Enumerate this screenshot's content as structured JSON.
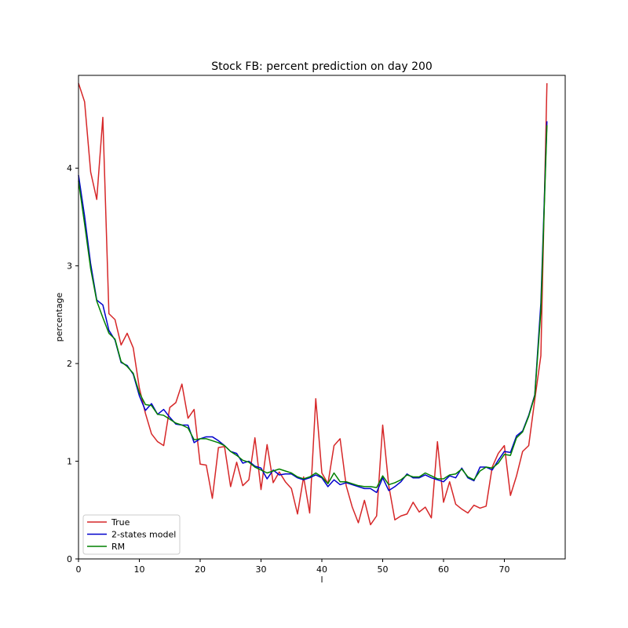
{
  "chart_data": {
    "type": "line",
    "title": "Stock FB: percent prediction on day 200",
    "xlabel": "l",
    "ylabel": "percentage",
    "xlim": [
      0,
      80
    ],
    "ylim": [
      0,
      4.95
    ],
    "xticks": [
      0,
      10,
      20,
      30,
      40,
      50,
      60,
      70
    ],
    "yticks": [
      0,
      1,
      2,
      3,
      4
    ],
    "grid": false,
    "legend_position": "lower-left",
    "series": [
      {
        "name": "True",
        "color": "#d62728",
        "values": [
          4.87,
          4.68,
          3.96,
          3.68,
          4.52,
          2.51,
          2.45,
          2.19,
          2.31,
          2.16,
          1.75,
          1.49,
          1.28,
          1.2,
          1.16,
          1.55,
          1.6,
          1.79,
          1.44,
          1.53,
          0.97,
          0.96,
          0.62,
          1.14,
          1.15,
          0.74,
          0.99,
          0.75,
          0.81,
          1.24,
          0.71,
          1.17,
          0.78,
          0.89,
          0.79,
          0.72,
          0.46,
          0.84,
          0.47,
          1.64,
          0.88,
          0.77,
          1.16,
          1.23,
          0.75,
          0.53,
          0.37,
          0.6,
          0.35,
          0.44,
          1.37,
          0.75,
          0.4,
          0.44,
          0.46,
          0.58,
          0.48,
          0.53,
          0.42,
          1.2,
          0.58,
          0.79,
          0.56,
          0.51,
          0.47,
          0.55,
          0.52,
          0.54,
          0.94,
          1.08,
          1.16,
          0.65,
          0.85,
          1.1,
          1.16,
          1.63,
          2.08,
          4.87
        ]
      },
      {
        "name": "2-states model",
        "color": "#0000cc",
        "values": [
          3.93,
          3.51,
          3.02,
          2.65,
          2.6,
          2.34,
          2.24,
          2.01,
          1.98,
          1.89,
          1.67,
          1.52,
          1.59,
          1.48,
          1.53,
          1.45,
          1.38,
          1.37,
          1.37,
          1.19,
          1.23,
          1.25,
          1.25,
          1.21,
          1.16,
          1.1,
          1.08,
          0.98,
          1.0,
          0.95,
          0.93,
          0.82,
          0.91,
          0.86,
          0.87,
          0.87,
          0.83,
          0.81,
          0.83,
          0.86,
          0.83,
          0.74,
          0.81,
          0.76,
          0.78,
          0.76,
          0.74,
          0.72,
          0.72,
          0.68,
          0.83,
          0.7,
          0.74,
          0.79,
          0.87,
          0.83,
          0.83,
          0.86,
          0.83,
          0.81,
          0.79,
          0.85,
          0.83,
          0.93,
          0.83,
          0.8,
          0.94,
          0.94,
          0.91,
          1.01,
          1.1,
          1.09,
          1.26,
          1.31,
          1.47,
          1.68,
          2.62,
          4.48
        ]
      },
      {
        "name": "RM",
        "color": "#008000",
        "values": [
          3.87,
          3.43,
          2.97,
          2.64,
          2.47,
          2.31,
          2.25,
          2.02,
          1.97,
          1.9,
          1.7,
          1.58,
          1.57,
          1.48,
          1.47,
          1.43,
          1.39,
          1.37,
          1.34,
          1.22,
          1.23,
          1.23,
          1.21,
          1.19,
          1.16,
          1.1,
          1.06,
          1.01,
          0.99,
          0.94,
          0.91,
          0.88,
          0.9,
          0.92,
          0.9,
          0.88,
          0.84,
          0.82,
          0.84,
          0.88,
          0.84,
          0.77,
          0.88,
          0.79,
          0.79,
          0.77,
          0.75,
          0.74,
          0.74,
          0.73,
          0.85,
          0.76,
          0.78,
          0.81,
          0.86,
          0.84,
          0.84,
          0.88,
          0.85,
          0.82,
          0.82,
          0.86,
          0.87,
          0.92,
          0.84,
          0.81,
          0.9,
          0.94,
          0.93,
          0.98,
          1.07,
          1.06,
          1.24,
          1.3,
          1.46,
          1.67,
          2.54,
          4.44
        ]
      }
    ]
  }
}
